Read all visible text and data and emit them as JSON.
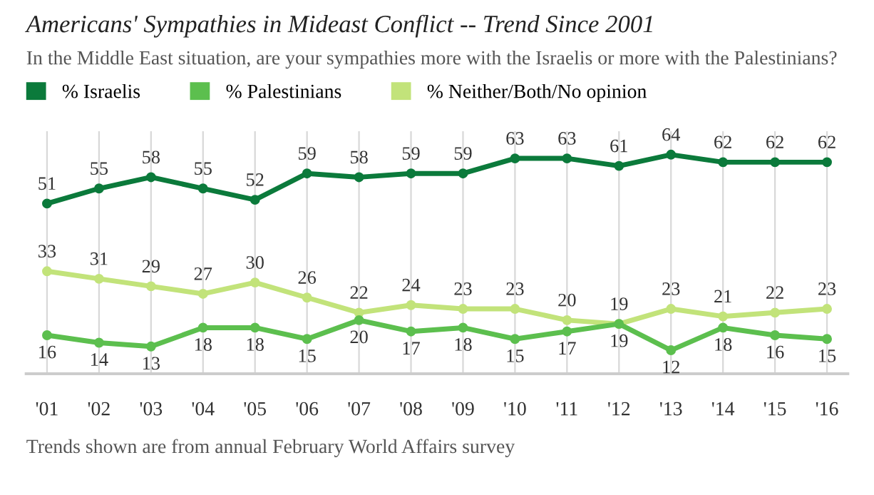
{
  "chart_data": {
    "type": "line",
    "title": "Americans' Sympathies in Mideast Conflict -- Trend Since 2001",
    "subtitle": "In the Middle East situation, are your sympathies more with the Israelis or more with the Palestinians?",
    "categories": [
      "'01",
      "'02",
      "'03",
      "'04",
      "'05",
      "'06",
      "'07",
      "'08",
      "'09",
      "'10",
      "'11",
      "'12",
      "'13",
      "'14",
      "'15",
      "'16"
    ],
    "series": [
      {
        "name": "% Israelis",
        "color": "#0b7a3b",
        "values": [
          51,
          55,
          58,
          55,
          52,
          59,
          58,
          59,
          59,
          63,
          63,
          61,
          64,
          62,
          62,
          62
        ]
      },
      {
        "name": "% Palestinians",
        "color": "#5cbf4e",
        "values": [
          16,
          14,
          13,
          18,
          18,
          15,
          20,
          17,
          18,
          15,
          17,
          19,
          12,
          18,
          16,
          15
        ]
      },
      {
        "name": "% Neither/Both/No opinion",
        "color": "#c2e37a",
        "values": [
          33,
          31,
          29,
          27,
          30,
          26,
          22,
          24,
          23,
          23,
          20,
          19,
          23,
          21,
          22,
          23
        ]
      }
    ],
    "data_labels": true,
    "marker": "circle",
    "line_style": "solid",
    "grid": "x",
    "legend": "top left",
    "tick_labels": "x",
    "annotations": [
      "Trends shown are from annual February World Affairs survey"
    ]
  }
}
